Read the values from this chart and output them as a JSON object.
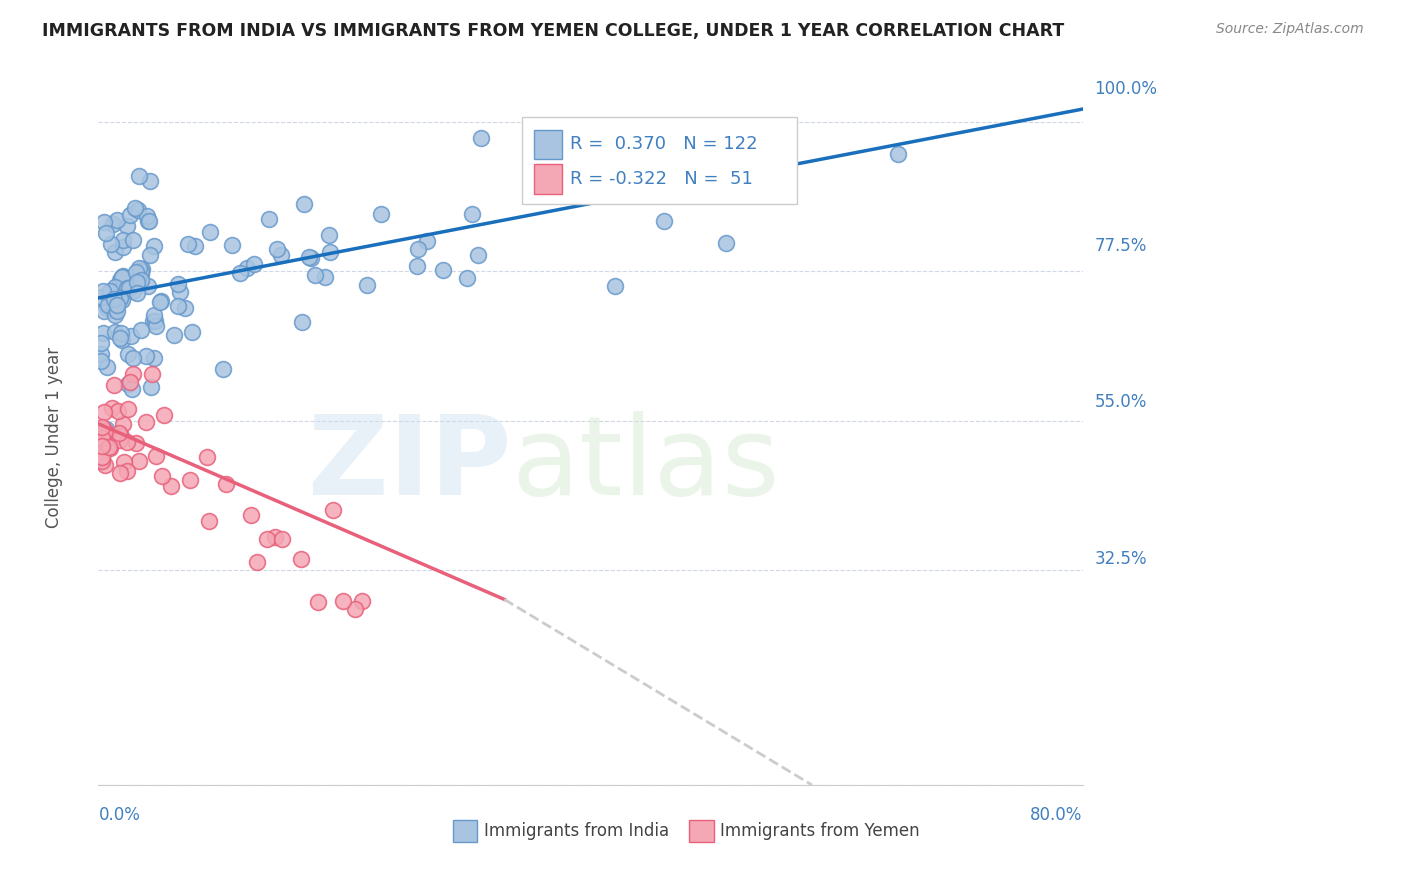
{
  "title": "IMMIGRANTS FROM INDIA VS IMMIGRANTS FROM YEMEN COLLEGE, UNDER 1 YEAR CORRELATION CHART",
  "source": "Source: ZipAtlas.com",
  "ylabel": "College, Under 1 year",
  "legend": {
    "india_R": 0.37,
    "india_N": 122,
    "yemen_R": -0.322,
    "yemen_N": 51
  },
  "india_line": {
    "x0": 0.0,
    "x1": 0.8,
    "y0": 0.735,
    "y1": 1.02
  },
  "yemen_line_solid": {
    "x0": 0.0,
    "x1": 0.33,
    "y0": 0.545,
    "y1": 0.28
  },
  "yemen_line_dash": {
    "x0": 0.33,
    "x1": 0.58,
    "y0": 0.28,
    "y1": 0.0
  },
  "xlim": [
    0.0,
    0.8
  ],
  "ylim": [
    0.0,
    1.05
  ],
  "yticks": [
    0.0,
    0.325,
    0.55,
    0.775,
    1.0
  ],
  "ytick_labels": [
    "",
    "32.5%",
    "55.0%",
    "77.5%",
    "100.0%"
  ],
  "bg_color": "#ffffff",
  "grid_color": "#d0d8e8",
  "title_color": "#222222",
  "axis_color": "#4080c0",
  "scatter_india_color": "#a8c4e0",
  "scatter_india_edge": "#6699cc",
  "scatter_yemen_color": "#f4a7b4",
  "scatter_yemen_edge": "#e8607a",
  "line_india_color": "#1a6fbd",
  "line_yemen_solid_color": "#e8607a",
  "line_yemen_dash_color": "#cccccc"
}
